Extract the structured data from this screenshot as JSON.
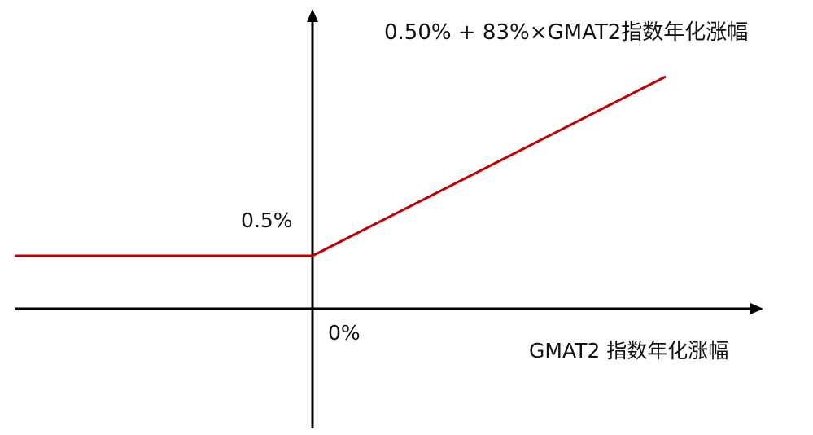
{
  "chart_data": {
    "type": "line",
    "title": "",
    "formula_label": "0.50% + 83%×GMAT2指数年化涨幅",
    "y_intercept_label": "0.5%",
    "origin_label": "0%",
    "xlabel": "GMAT2 指数年化涨幅",
    "ylabel": "",
    "series": [
      {
        "floor_value_percent": 0.5,
        "participation_rate_percent": 83
      }
    ],
    "colors": {
      "payoff_line": "#c00000",
      "axes": "#000000"
    }
  }
}
